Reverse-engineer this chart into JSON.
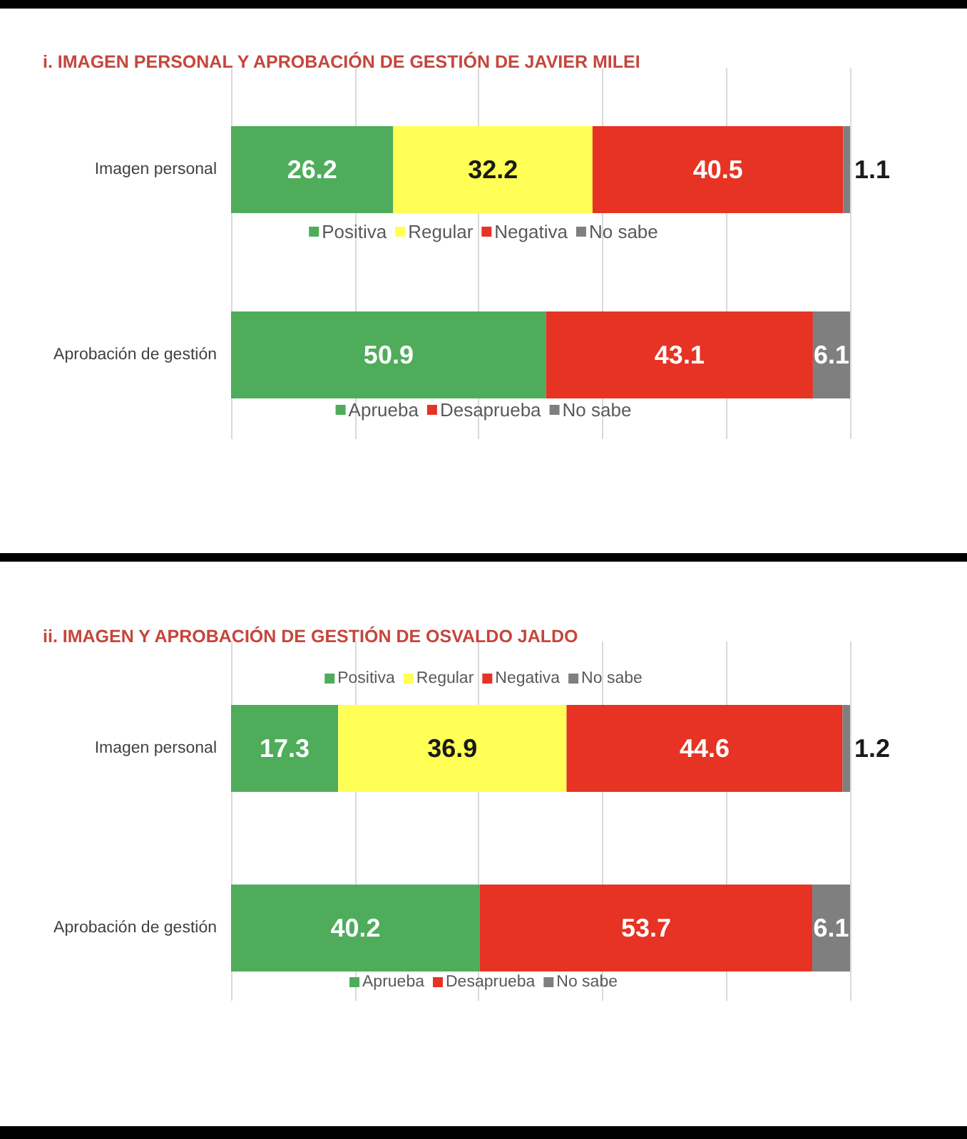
{
  "chart_data": [
    {
      "type": "bar",
      "title": "i. IMAGEN PERSONAL Y APROBACIÓN DE GESTIÓN DE JAVIER MILEI",
      "orientation": "horizontal",
      "stacked": true,
      "categories": [
        "Imagen personal"
      ],
      "series": [
        {
          "name": "Positiva",
          "color": "#4eac5b",
          "values": [
            26.2
          ]
        },
        {
          "name": "Regular",
          "color": "#ffff55",
          "values": [
            32.2
          ]
        },
        {
          "name": "Negativa",
          "color": "#e63323",
          "values": [
            40.5
          ]
        },
        {
          "name": "No sabe",
          "color": "#7f7f7f",
          "values": [
            1.1
          ]
        }
      ],
      "xlim": [
        0,
        100
      ],
      "xticks": [
        {
          "value": 0,
          "label": null
        },
        {
          "value": 20,
          "label": null
        },
        {
          "value": 40,
          "label": null
        },
        {
          "value": 60,
          "label": null
        },
        {
          "value": 80,
          "label": null
        },
        {
          "value": 100,
          "label": null
        }
      ],
      "grid": "x",
      "legend": "bottom",
      "data_labels": true,
      "tick_labels": "y"
    },
    {
      "type": "bar",
      "orientation": "horizontal",
      "stacked": true,
      "categories": [
        "Aprobación de gestión"
      ],
      "series": [
        {
          "name": "Aprueba",
          "color": "#4eac5b",
          "values": [
            50.9
          ]
        },
        {
          "name": "Desaprueba",
          "color": "#e63323",
          "values": [
            43.1
          ]
        },
        {
          "name": "No sabe",
          "color": "#7f7f7f",
          "values": [
            6.1
          ]
        }
      ],
      "xlim": [
        0,
        100
      ],
      "xticks": [
        {
          "value": 0,
          "label": null
        },
        {
          "value": 20,
          "label": null
        },
        {
          "value": 40,
          "label": null
        },
        {
          "value": 60,
          "label": null
        },
        {
          "value": 80,
          "label": null
        },
        {
          "value": 100,
          "label": null
        }
      ],
      "grid": "x",
      "legend": "bottom",
      "data_labels": true,
      "tick_labels": "y"
    },
    {
      "type": "bar",
      "title": "ii. IMAGEN Y APROBACIÓN DE GESTIÓN DE OSVALDO JALDO",
      "orientation": "horizontal",
      "stacked": true,
      "categories": [
        "Imagen personal"
      ],
      "series": [
        {
          "name": "Positiva",
          "color": "#4eac5b",
          "values": [
            17.3
          ]
        },
        {
          "name": "Regular",
          "color": "#ffff55",
          "values": [
            36.9
          ]
        },
        {
          "name": "Negativa",
          "color": "#e63323",
          "values": [
            44.6
          ]
        },
        {
          "name": "No sabe",
          "color": "#7f7f7f",
          "values": [
            1.2
          ]
        }
      ],
      "xlim": [
        0,
        100
      ],
      "xticks": [
        {
          "value": 0,
          "label": null
        },
        {
          "value": 20,
          "label": null
        },
        {
          "value": 40,
          "label": null
        },
        {
          "value": 60,
          "label": null
        },
        {
          "value": 80,
          "label": null
        },
        {
          "value": 100,
          "label": null
        }
      ],
      "grid": "x",
      "legend": "top",
      "data_labels": true,
      "tick_labels": "y"
    },
    {
      "type": "bar",
      "orientation": "horizontal",
      "stacked": true,
      "categories": [
        "Aprobación de gestión"
      ],
      "series": [
        {
          "name": "Aprueba",
          "color": "#4eac5b",
          "values": [
            40.2
          ]
        },
        {
          "name": "Desaprueba",
          "color": "#e63323",
          "values": [
            53.7
          ]
        },
        {
          "name": "No sabe",
          "color": "#7f7f7f",
          "values": [
            6.1
          ]
        }
      ],
      "xlim": [
        0,
        100
      ],
      "xticks": [
        {
          "value": 0,
          "label": null
        },
        {
          "value": 20,
          "label": null
        },
        {
          "value": 40,
          "label": null
        },
        {
          "value": 60,
          "label": null
        },
        {
          "value": 80,
          "label": null
        },
        {
          "value": 100,
          "label": null
        }
      ],
      "grid": "x",
      "legend": "bottom",
      "data_labels": true,
      "tick_labels": "y"
    }
  ]
}
